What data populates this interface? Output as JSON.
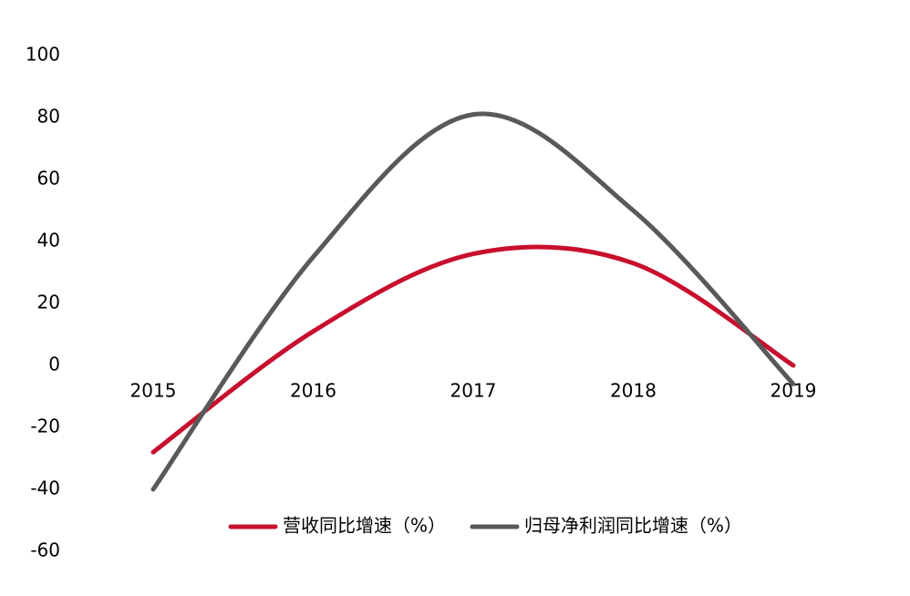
{
  "chart_data": {
    "type": "line",
    "categories": [
      "2015",
      "2016",
      "2017",
      "2018",
      "2019"
    ],
    "series": [
      {
        "name": "营收同比增速（%）",
        "color": "#c8102e",
        "values": [
          -28,
          11,
          36,
          33,
          0
        ]
      },
      {
        "name": "归母净利润同比增速（%）",
        "color": "#595959",
        "values": [
          -40,
          35,
          81,
          50,
          -6
        ]
      }
    ],
    "ylim": [
      -60,
      100
    ],
    "yticks": [
      -60,
      -40,
      -20,
      0,
      20,
      40,
      60,
      80,
      100
    ],
    "grid": false,
    "smooth": true,
    "legend": "bottom"
  }
}
